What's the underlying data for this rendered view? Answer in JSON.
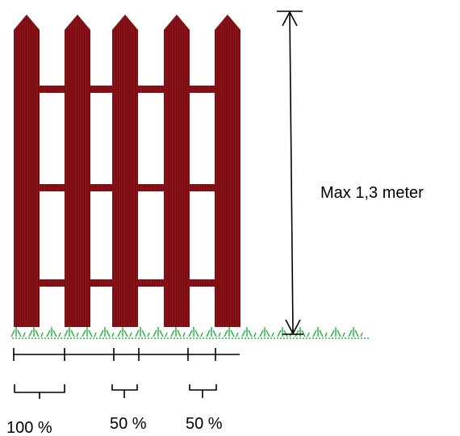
{
  "labels": {
    "max_height": "Max 1,3 meter",
    "pct_a": "100 %",
    "pct_b": "50 %",
    "pct_c": "50 %"
  },
  "colors": {
    "fence": "#8b1219",
    "fence_stripe": "#6e0c12",
    "grass": "#2fb34a",
    "ink": "#000000"
  }
}
